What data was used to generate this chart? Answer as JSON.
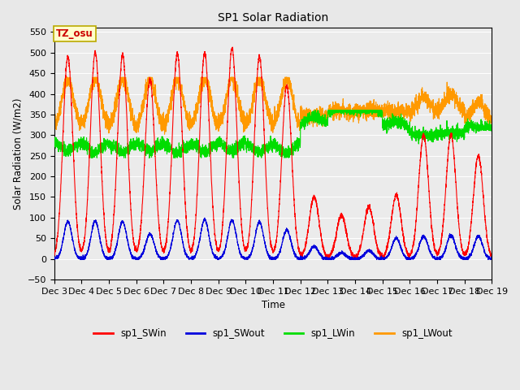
{
  "title": "SP1 Solar Radiation",
  "ylabel": "Solar Radiation (W/m2)",
  "xlabel": "Time",
  "ylim": [
    -50,
    560
  ],
  "yticks": [
    -50,
    0,
    50,
    100,
    150,
    200,
    250,
    300,
    350,
    400,
    450,
    500,
    550
  ],
  "bg_color": "#e8e8e8",
  "plot_bg_color": "#ebebeb",
  "annotation_text": "TZ_osu",
  "annotation_bg": "#ffffcc",
  "annotation_border": "#bbaa00",
  "annotation_text_color": "#cc0000",
  "colors": {
    "SWin": "#ff0000",
    "SWout": "#0000dd",
    "LWin": "#00dd00",
    "LWout": "#ff9900"
  },
  "legend": [
    "sp1_SWin",
    "sp1_SWout",
    "sp1_LWin",
    "sp1_LWout"
  ],
  "num_days": 16,
  "start_day": 3,
  "ppd": 288
}
